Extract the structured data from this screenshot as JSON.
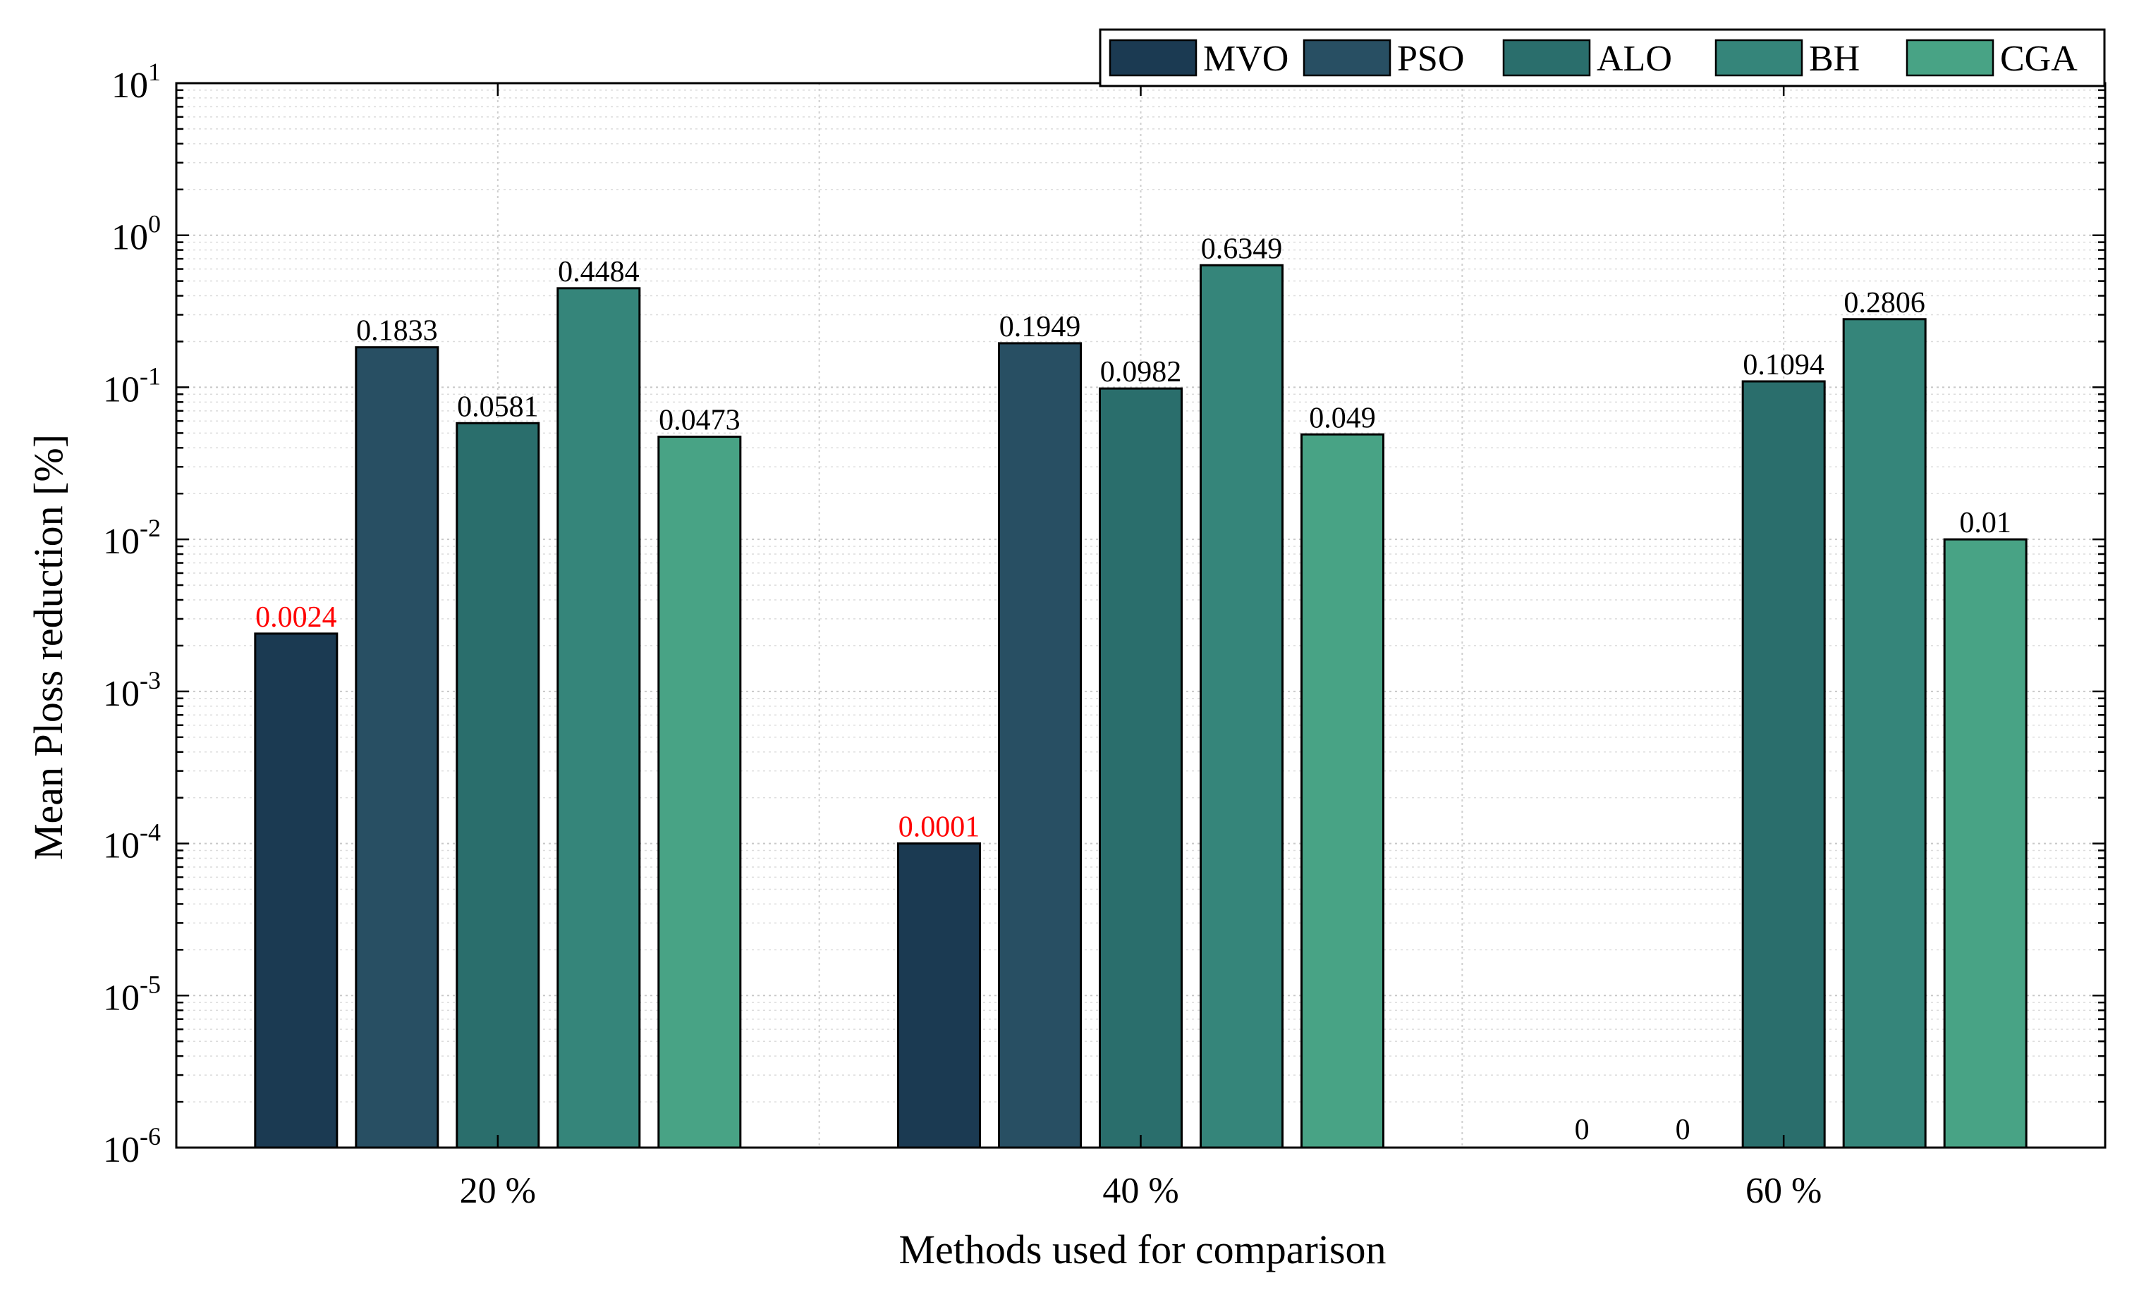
{
  "chart_data": {
    "type": "bar",
    "xlabel": "Methods used for comparison",
    "ylabel": "Mean Ploss reduction [%]",
    "yscale": "log",
    "ylim": [
      1e-06,
      10
    ],
    "grid": true,
    "legend_position": "top-right",
    "categories": [
      "20 %",
      "40 %",
      "60 %"
    ],
    "y_tick_labels": [
      {
        "base": "10",
        "exp": "1"
      },
      {
        "base": "10",
        "exp": "0"
      },
      {
        "base": "10",
        "exp": "-1"
      },
      {
        "base": "10",
        "exp": "-2"
      },
      {
        "base": "10",
        "exp": "-3"
      },
      {
        "base": "10",
        "exp": "-4"
      },
      {
        "base": "10",
        "exp": "-5"
      },
      {
        "base": "10",
        "exp": "-6"
      }
    ],
    "series": [
      {
        "name": "MVO",
        "color": "#1b3a52",
        "values": [
          0.0024,
          0.0001,
          0
        ],
        "labels": [
          "0.0024",
          "0.0001",
          "0"
        ],
        "label_colors": [
          "#ff0000",
          "#ff0000",
          "#000000"
        ]
      },
      {
        "name": "PSO",
        "color": "#284f63",
        "values": [
          0.1833,
          0.1949,
          0
        ],
        "labels": [
          "0.1833",
          "0.1949",
          "0"
        ],
        "label_colors": [
          "#000000",
          "#000000",
          "#000000"
        ]
      },
      {
        "name": "ALO",
        "color": "#2a6e6c",
        "values": [
          0.0581,
          0.0982,
          0.1094
        ],
        "labels": [
          "0.0581",
          "0.0982",
          "0.1094"
        ],
        "label_colors": [
          "#000000",
          "#000000",
          "#000000"
        ]
      },
      {
        "name": "BH",
        "color": "#35857a",
        "values": [
          0.4484,
          0.6349,
          0.2806
        ],
        "labels": [
          "0.4484",
          "0.6349",
          "0.2806"
        ],
        "label_colors": [
          "#000000",
          "#000000",
          "#000000"
        ]
      },
      {
        "name": "CGA",
        "color": "#48a385",
        "values": [
          0.0473,
          0.049,
          0.01
        ],
        "labels": [
          "0.0473",
          "0.049",
          "0.01"
        ],
        "label_colors": [
          "#000000",
          "#000000",
          "#000000"
        ]
      }
    ]
  }
}
